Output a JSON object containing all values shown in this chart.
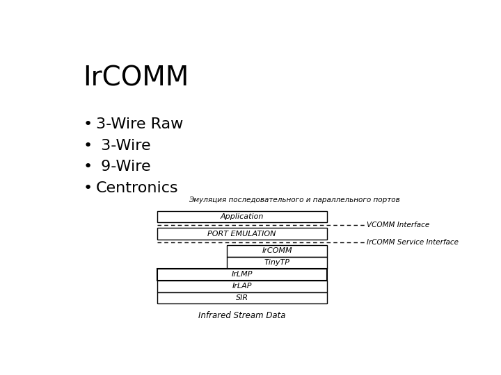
{
  "title": "IrCOMM",
  "bullets": [
    "3-Wire Raw",
    " 3-Wire",
    " 9-Wire",
    "Centronics"
  ],
  "subtitle": "Эмуляция последовательного и параллельного портов",
  "bg_color": "#ffffff",
  "title_fontsize": 28,
  "bullet_fontsize": 16,
  "diagram": {
    "application_label": "Application",
    "port_emulation_label": "PORT EMULATION",
    "ircomm_label": "IrCOMM",
    "tinytp_label": "TinyTP",
    "irlmp_label": "IrLMP",
    "irlap_label": "IrLAP",
    "sir_label": "SIR",
    "footer_label": "Infrared Stream Data",
    "vcomm_label": "VCOMM Interface",
    "ircomm_service_label": "IrCOMM Service Interface"
  }
}
